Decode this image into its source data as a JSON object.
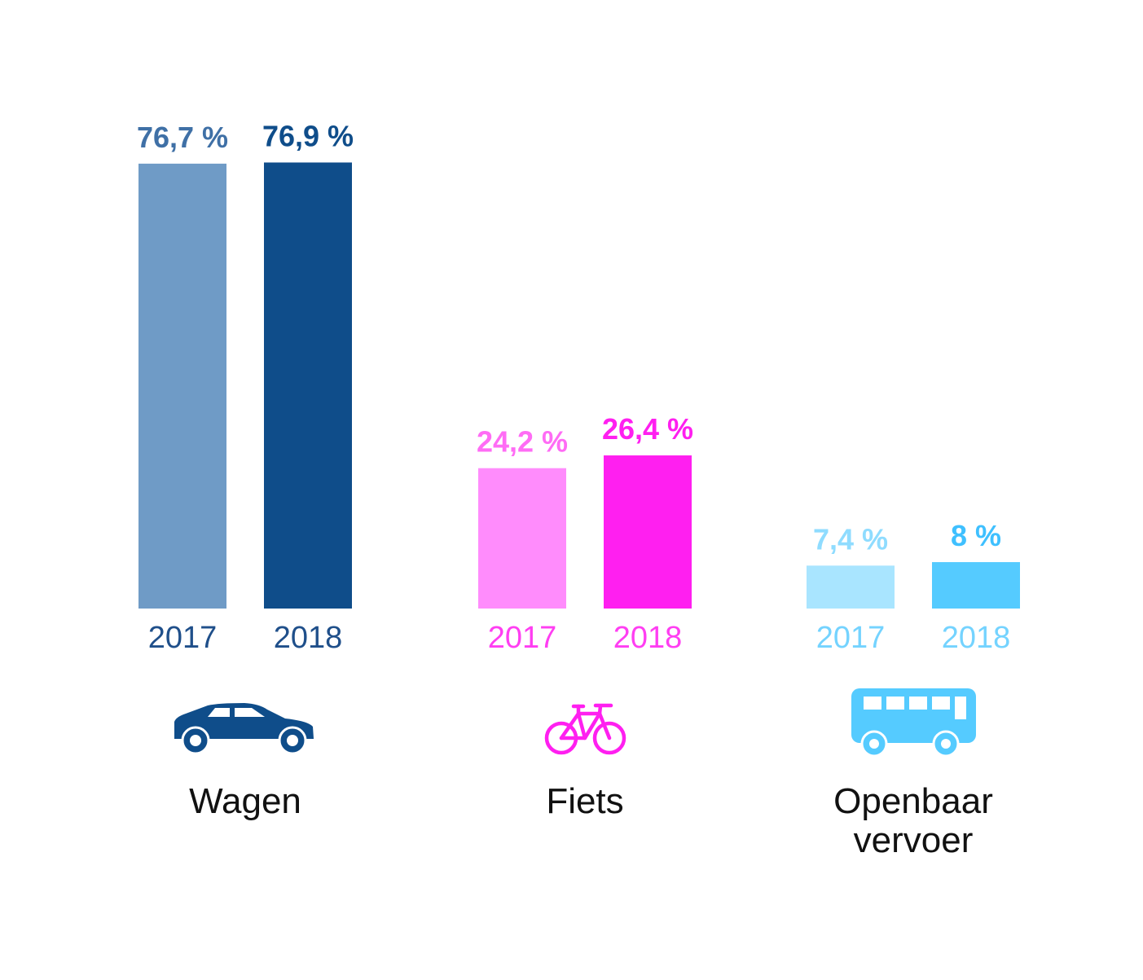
{
  "chart_data": {
    "type": "bar",
    "ylim": [
      0,
      100
    ],
    "groups": [
      {
        "category": "Wagen",
        "category_lines": [
          "Wagen"
        ],
        "icon": "car-icon",
        "icon_color": "#0f4d8a",
        "bars": [
          {
            "year": "2017",
            "value": 76.7,
            "label": "76,7 %",
            "color": "#6f9bc6",
            "label_color": "#3f70a6",
            "year_color": "#1f4f8a"
          },
          {
            "year": "2018",
            "value": 76.9,
            "label": "76,9 %",
            "color": "#0f4d8a",
            "label_color": "#0f4d8a",
            "year_color": "#1f4f8a"
          }
        ]
      },
      {
        "category": "Fiets",
        "category_lines": [
          "Fiets"
        ],
        "icon": "bicycle-icon",
        "icon_color": "#ff1ff0",
        "bars": [
          {
            "year": "2017",
            "value": 24.2,
            "label": "24,2 %",
            "color": "#ff8cfc",
            "label_color": "#ff6cf5",
            "year_color": "#ff3ef2"
          },
          {
            "year": "2018",
            "value": 26.4,
            "label": "26,4 %",
            "color": "#ff1ff0",
            "label_color": "#ff1ff0",
            "year_color": "#ff3ef2"
          }
        ]
      },
      {
        "category": "Openbaar vervoer",
        "category_lines": [
          "Openbaar",
          "vervoer"
        ],
        "icon": "bus-icon",
        "icon_color": "#55cbff",
        "bars": [
          {
            "year": "2017",
            "value": 7.4,
            "label": "7,4 %",
            "color": "#a9e5ff",
            "label_color": "#8fdcff",
            "year_color": "#74d3ff"
          },
          {
            "year": "2018",
            "value": 8,
            "label": "8 %",
            "color": "#55cbff",
            "label_color": "#3fc0ff",
            "year_color": "#74d3ff"
          }
        ]
      }
    ]
  }
}
